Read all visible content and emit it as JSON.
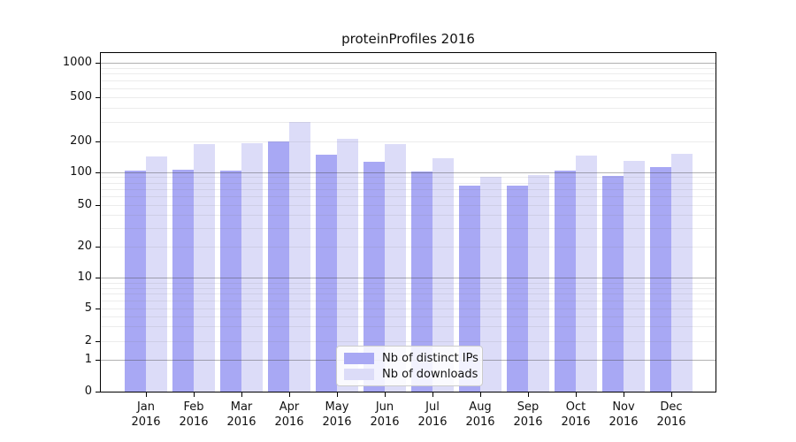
{
  "title": "proteinProfiles 2016",
  "legend": {
    "items": [
      {
        "label": "Nb of distinct IPs",
        "color": "#a8a8f4"
      },
      {
        "label": "Nb of downloads",
        "color": "#dcdcf8"
      }
    ]
  },
  "chart_data": {
    "type": "bar",
    "title": "proteinProfiles 2016",
    "categories": [
      "Jan 2016",
      "Feb 2016",
      "Mar 2016",
      "Apr 2016",
      "May 2016",
      "Jun 2016",
      "Jul 2016",
      "Aug 2016",
      "Sep 2016",
      "Oct 2016",
      "Nov 2016",
      "Dec 2016"
    ],
    "series": [
      {
        "name": "Nb of distinct IPs",
        "color": "#a8a8f4",
        "values": [
          104,
          106,
          104,
          200,
          148,
          128,
          102,
          75,
          75,
          104,
          93,
          112
        ]
      },
      {
        "name": "Nb of downloads",
        "color": "#dcdcf8",
        "values": [
          143,
          190,
          192,
          300,
          212,
          188,
          138,
          90,
          95,
          146,
          130,
          152
        ]
      }
    ],
    "xlabel": "",
    "ylabel": "",
    "yscale": "log-like with 0 baseline",
    "yticks": [
      0,
      1,
      2,
      5,
      10,
      20,
      50,
      100,
      200,
      500,
      1000
    ],
    "ylim": [
      0,
      1000
    ],
    "grid": "horizontal, major (decades) dark + minor light, drawn over bars",
    "legend_position": "lower center inside plot"
  }
}
